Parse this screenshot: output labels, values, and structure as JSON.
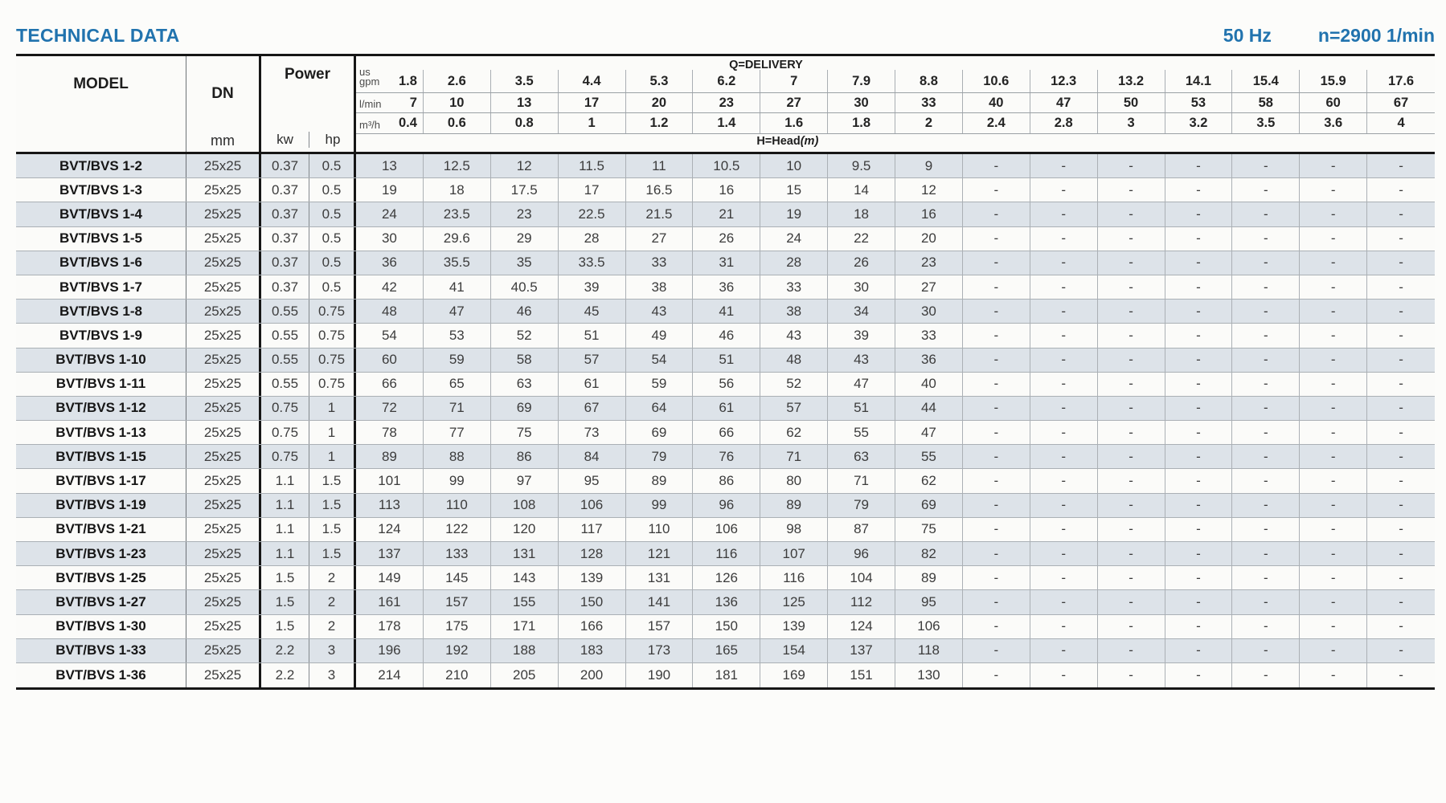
{
  "header": {
    "title": "TECHNICAL DATA",
    "frequency": "50 Hz",
    "speed": "n=2900 1/min"
  },
  "table": {
    "model_header": "MODEL",
    "dn_header": "DN",
    "dn_unit": "mm",
    "power_header": "Power",
    "kw_label": "kw",
    "hp_label": "hp",
    "delivery_label": "Q=DELIVERY",
    "head_label": "H=Head",
    "head_unit": "(m)",
    "units": {
      "gpm_label": "us gpm",
      "gpm": [
        "1.8",
        "2.6",
        "3.5",
        "4.4",
        "5.3",
        "6.2",
        "7",
        "7.9",
        "8.8",
        "10.6",
        "12.3",
        "13.2",
        "14.1",
        "15.4",
        "15.9",
        "17.6"
      ],
      "lmin_label": "l/min",
      "lmin": [
        "7",
        "10",
        "13",
        "17",
        "20",
        "23",
        "27",
        "30",
        "33",
        "40",
        "47",
        "50",
        "53",
        "58",
        "60",
        "67"
      ],
      "m3h_label": "m³/h",
      "m3h": [
        "0.4",
        "0.6",
        "0.8",
        "1",
        "1.2",
        "1.4",
        "1.6",
        "1.8",
        "2",
        "2.4",
        "2.8",
        "3",
        "3.2",
        "3.5",
        "3.6",
        "4"
      ]
    },
    "rows": [
      {
        "model": "BVT/BVS 1-2",
        "dn": "25x25",
        "kw": "0.37",
        "hp": "0.5",
        "head": [
          "13",
          "12.5",
          "12",
          "11.5",
          "11",
          "10.5",
          "10",
          "9.5",
          "9",
          "-",
          "-",
          "-",
          "-",
          "-",
          "-",
          "-"
        ]
      },
      {
        "model": "BVT/BVS 1-3",
        "dn": "25x25",
        "kw": "0.37",
        "hp": "0.5",
        "head": [
          "19",
          "18",
          "17.5",
          "17",
          "16.5",
          "16",
          "15",
          "14",
          "12",
          "-",
          "-",
          "-",
          "-",
          "-",
          "-",
          "-"
        ]
      },
      {
        "model": "BVT/BVS 1-4",
        "dn": "25x25",
        "kw": "0.37",
        "hp": "0.5",
        "head": [
          "24",
          "23.5",
          "23",
          "22.5",
          "21.5",
          "21",
          "19",
          "18",
          "16",
          "-",
          "-",
          "-",
          "-",
          "-",
          "-",
          "-"
        ]
      },
      {
        "model": "BVT/BVS 1-5",
        "dn": "25x25",
        "kw": "0.37",
        "hp": "0.5",
        "head": [
          "30",
          "29.6",
          "29",
          "28",
          "27",
          "26",
          "24",
          "22",
          "20",
          "-",
          "-",
          "-",
          "-",
          "-",
          "-",
          "-"
        ]
      },
      {
        "model": "BVT/BVS 1-6",
        "dn": "25x25",
        "kw": "0.37",
        "hp": "0.5",
        "head": [
          "36",
          "35.5",
          "35",
          "33.5",
          "33",
          "31",
          "28",
          "26",
          "23",
          "-",
          "-",
          "-",
          "-",
          "-",
          "-",
          "-"
        ]
      },
      {
        "model": "BVT/BVS 1-7",
        "dn": "25x25",
        "kw": "0.37",
        "hp": "0.5",
        "head": [
          "42",
          "41",
          "40.5",
          "39",
          "38",
          "36",
          "33",
          "30",
          "27",
          "-",
          "-",
          "-",
          "-",
          "-",
          "-",
          "-"
        ]
      },
      {
        "model": "BVT/BVS 1-8",
        "dn": "25x25",
        "kw": "0.55",
        "hp": "0.75",
        "head": [
          "48",
          "47",
          "46",
          "45",
          "43",
          "41",
          "38",
          "34",
          "30",
          "-",
          "-",
          "-",
          "-",
          "-",
          "-",
          "-"
        ]
      },
      {
        "model": "BVT/BVS 1-9",
        "dn": "25x25",
        "kw": "0.55",
        "hp": "0.75",
        "head": [
          "54",
          "53",
          "52",
          "51",
          "49",
          "46",
          "43",
          "39",
          "33",
          "-",
          "-",
          "-",
          "-",
          "-",
          "-",
          "-"
        ]
      },
      {
        "model": "BVT/BVS 1-10",
        "dn": "25x25",
        "kw": "0.55",
        "hp": "0.75",
        "head": [
          "60",
          "59",
          "58",
          "57",
          "54",
          "51",
          "48",
          "43",
          "36",
          "-",
          "-",
          "-",
          "-",
          "-",
          "-",
          "-"
        ]
      },
      {
        "model": "BVT/BVS 1-11",
        "dn": "25x25",
        "kw": "0.55",
        "hp": "0.75",
        "head": [
          "66",
          "65",
          "63",
          "61",
          "59",
          "56",
          "52",
          "47",
          "40",
          "-",
          "-",
          "-",
          "-",
          "-",
          "-",
          "-"
        ]
      },
      {
        "model": "BVT/BVS 1-12",
        "dn": "25x25",
        "kw": "0.75",
        "hp": "1",
        "head": [
          "72",
          "71",
          "69",
          "67",
          "64",
          "61",
          "57",
          "51",
          "44",
          "-",
          "-",
          "-",
          "-",
          "-",
          "-",
          "-"
        ]
      },
      {
        "model": "BVT/BVS 1-13",
        "dn": "25x25",
        "kw": "0.75",
        "hp": "1",
        "head": [
          "78",
          "77",
          "75",
          "73",
          "69",
          "66",
          "62",
          "55",
          "47",
          "-",
          "-",
          "-",
          "-",
          "-",
          "-",
          "-"
        ]
      },
      {
        "model": "BVT/BVS 1-15",
        "dn": "25x25",
        "kw": "0.75",
        "hp": "1",
        "head": [
          "89",
          "88",
          "86",
          "84",
          "79",
          "76",
          "71",
          "63",
          "55",
          "-",
          "-",
          "-",
          "-",
          "-",
          "-",
          "-"
        ]
      },
      {
        "model": "BVT/BVS 1-17",
        "dn": "25x25",
        "kw": "1.1",
        "hp": "1.5",
        "head": [
          "101",
          "99",
          "97",
          "95",
          "89",
          "86",
          "80",
          "71",
          "62",
          "-",
          "-",
          "-",
          "-",
          "-",
          "-",
          "-"
        ]
      },
      {
        "model": "BVT/BVS 1-19",
        "dn": "25x25",
        "kw": "1.1",
        "hp": "1.5",
        "head": [
          "113",
          "110",
          "108",
          "106",
          "99",
          "96",
          "89",
          "79",
          "69",
          "-",
          "-",
          "-",
          "-",
          "-",
          "-",
          "-"
        ]
      },
      {
        "model": "BVT/BVS 1-21",
        "dn": "25x25",
        "kw": "1.1",
        "hp": "1.5",
        "head": [
          "124",
          "122",
          "120",
          "117",
          "110",
          "106",
          "98",
          "87",
          "75",
          "-",
          "-",
          "-",
          "-",
          "-",
          "-",
          "-"
        ]
      },
      {
        "model": "BVT/BVS 1-23",
        "dn": "25x25",
        "kw": "1.1",
        "hp": "1.5",
        "head": [
          "137",
          "133",
          "131",
          "128",
          "121",
          "116",
          "107",
          "96",
          "82",
          "-",
          "-",
          "-",
          "-",
          "-",
          "-",
          "-"
        ]
      },
      {
        "model": "BVT/BVS 1-25",
        "dn": "25x25",
        "kw": "1.5",
        "hp": "2",
        "head": [
          "149",
          "145",
          "143",
          "139",
          "131",
          "126",
          "116",
          "104",
          "89",
          "-",
          "-",
          "-",
          "-",
          "-",
          "-",
          "-"
        ]
      },
      {
        "model": "BVT/BVS 1-27",
        "dn": "25x25",
        "kw": "1.5",
        "hp": "2",
        "head": [
          "161",
          "157",
          "155",
          "150",
          "141",
          "136",
          "125",
          "112",
          "95",
          "-",
          "-",
          "-",
          "-",
          "-",
          "-",
          "-"
        ]
      },
      {
        "model": "BVT/BVS 1-30",
        "dn": "25x25",
        "kw": "1.5",
        "hp": "2",
        "head": [
          "178",
          "175",
          "171",
          "166",
          "157",
          "150",
          "139",
          "124",
          "106",
          "-",
          "-",
          "-",
          "-",
          "-",
          "-",
          "-"
        ]
      },
      {
        "model": "BVT/BVS 1-33",
        "dn": "25x25",
        "kw": "2.2",
        "hp": "3",
        "head": [
          "196",
          "192",
          "188",
          "183",
          "173",
          "165",
          "154",
          "137",
          "118",
          "-",
          "-",
          "-",
          "-",
          "-",
          "-",
          "-"
        ]
      },
      {
        "model": "BVT/BVS 1-36",
        "dn": "25x25",
        "kw": "2.2",
        "hp": "3",
        "head": [
          "214",
          "210",
          "205",
          "200",
          "190",
          "181",
          "169",
          "151",
          "130",
          "-",
          "-",
          "-",
          "-",
          "-",
          "-",
          "-"
        ]
      }
    ]
  },
  "colors": {
    "accent_blue": "#2173ae",
    "stripe_row": "#dde3e9",
    "plain_row": "#fbfbf9",
    "border_black": "#161616"
  }
}
